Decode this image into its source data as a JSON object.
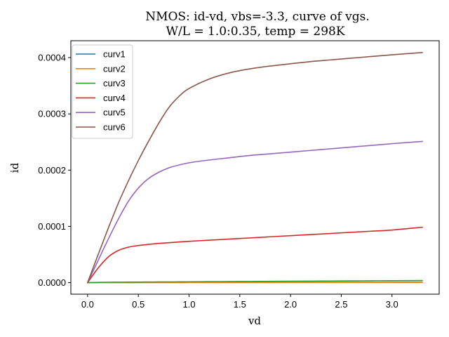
{
  "chart_data": {
    "type": "line",
    "title_lines": [
      "NMOS: id-vd, vbs=-3.3, curve of vgs.",
      "W/L = 1.0:0.35, temp = 298K"
    ],
    "xlabel": "vd",
    "ylabel": "id",
    "xlim": [
      -0.165,
      3.465
    ],
    "ylim": [
      -2.05e-05,
      0.00043
    ],
    "x_ticks": [
      0.0,
      0.5,
      1.0,
      1.5,
      2.0,
      2.5,
      3.0
    ],
    "x_tick_labels": [
      "0.0",
      "0.5",
      "1.0",
      "1.5",
      "2.0",
      "2.5",
      "3.0"
    ],
    "y_ticks": [
      0.0,
      0.0001,
      0.0002,
      0.0003,
      0.0004
    ],
    "y_tick_labels": [
      "0.0000",
      "0.0001",
      "0.0002",
      "0.0003",
      "0.0004"
    ],
    "grid": false,
    "legend_position": "upper-left",
    "x": [
      0.0,
      0.1,
      0.2,
      0.3,
      0.4,
      0.5,
      0.6,
      0.7,
      0.8,
      0.9,
      1.0,
      1.2,
      1.4,
      1.6,
      1.8,
      2.0,
      2.2,
      2.4,
      2.6,
      2.8,
      3.0,
      3.3
    ],
    "series": [
      {
        "name": "curv1",
        "color": "#1f77b4",
        "values": [
          0,
          1e-07,
          2e-07,
          2e-07,
          2e-07,
          3e-07,
          3e-07,
          3e-07,
          3e-07,
          3e-07,
          4e-07,
          4e-07,
          4e-07,
          5e-07,
          5e-07,
          5e-07,
          6e-07,
          6e-07,
          6e-07,
          7e-07,
          7e-07,
          8e-07
        ]
      },
      {
        "name": "curv2",
        "color": "#ff7f0e",
        "values": [
          0,
          1e-07,
          1e-07,
          2e-07,
          2e-07,
          2e-07,
          2e-07,
          2e-07,
          2e-07,
          2e-07,
          3e-07,
          3e-07,
          3e-07,
          3e-07,
          3e-07,
          4e-07,
          4e-07,
          4e-07,
          4e-07,
          5e-07,
          5e-07,
          5e-07
        ]
      },
      {
        "name": "curv3",
        "color": "#2ca02c",
        "values": [
          0,
          5e-07,
          7e-07,
          8e-07,
          9e-07,
          1e-06,
          1.1e-06,
          1.2e-06,
          1.3e-06,
          1.4e-06,
          1.5e-06,
          1.7e-06,
          1.9e-06,
          2.1e-06,
          2.3e-06,
          2.5e-06,
          2.7e-06,
          2.9e-06,
          3.1e-06,
          3.3e-06,
          3.5e-06,
          3.8e-06
        ]
      },
      {
        "name": "curv4",
        "color": "#d62728",
        "values": [
          0,
          2.5e-05,
          4.5e-05,
          5.7e-05,
          6.3e-05,
          6.6e-05,
          6.8e-05,
          6.97e-05,
          7.1e-05,
          7.23e-05,
          7.35e-05,
          7.55e-05,
          7.75e-05,
          7.95e-05,
          8.15e-05,
          8.35e-05,
          8.55e-05,
          8.75e-05,
          8.95e-05,
          9.15e-05,
          9.35e-05,
          9.85e-05
        ]
      },
      {
        "name": "curv5",
        "color": "#9467bd",
        "values": [
          0,
          3.8e-05,
          7.6e-05,
          0.000112,
          0.000144,
          0.000168,
          0.000185,
          0.000196,
          0.000204,
          0.000209,
          0.000213,
          0.000218,
          0.000222,
          0.000226,
          0.000229,
          0.000232,
          0.000235,
          0.000238,
          0.000241,
          0.000244,
          0.000247,
          0.000251
        ]
      },
      {
        "name": "curv6",
        "color": "#8c564b",
        "values": [
          0,
          4.8e-05,
          9.5e-05,
          0.00014,
          0.00018,
          0.000217,
          0.000251,
          0.000283,
          0.000311,
          0.000331,
          0.000345,
          0.000362,
          0.000373,
          0.00038,
          0.000385,
          0.000389,
          0.000393,
          0.000396,
          0.000399,
          0.000402,
          0.000405,
          0.000409
        ]
      }
    ]
  }
}
